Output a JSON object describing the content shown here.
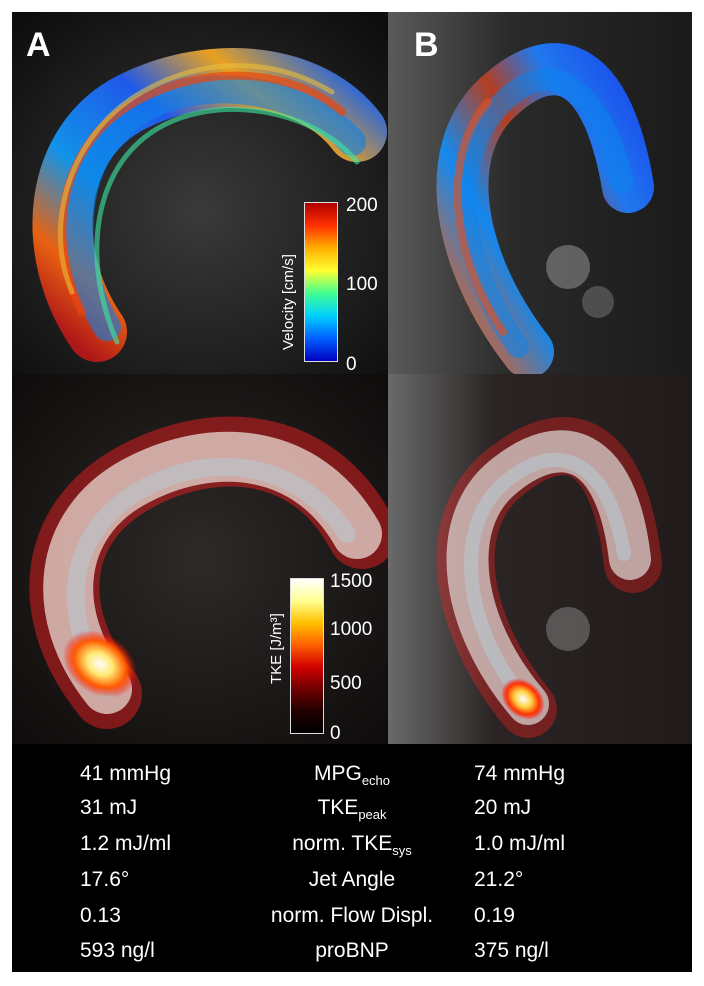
{
  "panels": {
    "a_label": "A",
    "b_label": "B"
  },
  "velocity_colorbar": {
    "title": "Velocity [cm/s]",
    "ticks": [
      "200",
      "100",
      "0"
    ],
    "colors": [
      "#b00000",
      "#ff3000",
      "#ffb000",
      "#ffff30",
      "#40ff90",
      "#00d0ff",
      "#0060ff",
      "#0000c0"
    ]
  },
  "tke_colorbar": {
    "title": "TKE [J/m³]",
    "ticks": [
      "1500",
      "1000",
      "500",
      "0"
    ],
    "colors": [
      "#ffffff",
      "#ffff90",
      "#ffc000",
      "#ff6000",
      "#d00000",
      "#700000",
      "#200000",
      "#000000"
    ]
  },
  "table": {
    "rows": [
      {
        "a": "41 mmHg",
        "param": "MPG",
        "sub": "echo",
        "b": "74 mmHg"
      },
      {
        "a": "31 mJ",
        "param": "TKE",
        "sub": "peak",
        "b": "20 mJ"
      },
      {
        "a": "1.2 mJ/ml",
        "param": "norm. TKE",
        "sub": "sys",
        "b": "1.0 mJ/ml"
      },
      {
        "a": "17.6°",
        "param": "Jet Angle",
        "sub": "",
        "b": "21.2°"
      },
      {
        "a": "0.13",
        "param": "norm. Flow Displ.",
        "sub": "",
        "b": "0.19"
      },
      {
        "a": "593 ng/l",
        "param": "proBNP",
        "sub": "",
        "b": "375 ng/l"
      }
    ]
  }
}
